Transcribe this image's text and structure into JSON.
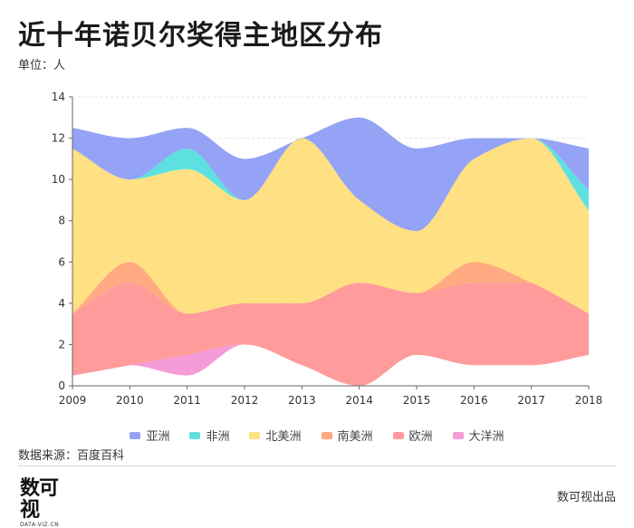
{
  "header": {
    "title": "近十年诺贝尔奖得主地区分布",
    "unit": "单位：人"
  },
  "footer": {
    "source": "数据来源：百度百科",
    "logo_text": "数可视",
    "logo_sub": "DATA-VIZ.CN",
    "brand": "数可视出品"
  },
  "chart_data": {
    "type": "area",
    "stacked": true,
    "smooth": true,
    "categories": [
      "2009",
      "2010",
      "2011",
      "2012",
      "2013",
      "2014",
      "2015",
      "2016",
      "2017",
      "2018"
    ],
    "ylim": [
      0,
      14
    ],
    "yticks": [
      0,
      2,
      4,
      6,
      8,
      10,
      12,
      14
    ],
    "grid": true,
    "legend_position": "bottom",
    "baseline": [
      0.5,
      1,
      0.5,
      2,
      1,
      0,
      1.5,
      1,
      1,
      1.5
    ],
    "series": [
      {
        "name": "大洋洲",
        "values": [
          0,
          0,
          1,
          0,
          0,
          0,
          0,
          0,
          0,
          0
        ],
        "color": "#f59bd8"
      },
      {
        "name": "欧洲",
        "values": [
          3,
          4,
          2,
          2,
          3,
          5,
          3,
          4,
          4,
          2
        ],
        "color": "#ff9b9b"
      },
      {
        "name": "南美洲",
        "values": [
          0,
          1,
          0,
          0,
          0,
          0,
          0,
          1,
          0,
          0
        ],
        "color": "#ffaa80"
      },
      {
        "name": "北美洲",
        "values": [
          8,
          4,
          7,
          5,
          8,
          4,
          3,
          5,
          7,
          5
        ],
        "color": "#ffe082"
      },
      {
        "name": "非洲",
        "values": [
          0,
          0,
          1,
          0,
          0,
          0,
          0,
          0,
          0,
          1
        ],
        "color": "#5ee0e0"
      },
      {
        "name": "亚洲",
        "values": [
          1,
          2,
          1,
          2,
          0,
          4,
          4,
          1,
          0,
          2
        ],
        "color": "#94a3f5"
      }
    ],
    "legend_order": [
      "亚洲",
      "非洲",
      "北美洲",
      "南美洲",
      "欧洲",
      "大洋洲"
    ]
  }
}
